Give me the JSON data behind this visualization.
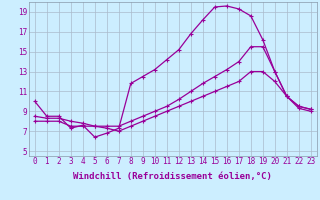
{
  "xlabel": "Windchill (Refroidissement éolien,°C)",
  "bg_color": "#cceeff",
  "grid_color": "#aabbcc",
  "line_color": "#990099",
  "xlim": [
    -0.5,
    23.5
  ],
  "ylim": [
    4.5,
    20.0
  ],
  "xticks": [
    0,
    1,
    2,
    3,
    4,
    5,
    6,
    7,
    8,
    9,
    10,
    11,
    12,
    13,
    14,
    15,
    16,
    17,
    18,
    19,
    20,
    21,
    22,
    23
  ],
  "yticks": [
    5,
    7,
    9,
    11,
    13,
    15,
    17,
    19
  ],
  "line1_x": [
    0,
    1,
    2,
    3,
    4,
    5,
    6,
    7,
    8,
    9,
    10,
    11,
    12,
    13,
    14,
    15,
    16,
    17,
    18,
    19,
    20,
    21,
    22,
    23
  ],
  "line1_y": [
    10.0,
    8.5,
    8.5,
    7.3,
    7.6,
    6.4,
    6.8,
    7.3,
    11.8,
    12.5,
    13.2,
    14.2,
    15.2,
    16.8,
    18.2,
    19.5,
    19.6,
    19.3,
    18.6,
    16.2,
    13.0,
    10.5,
    9.5,
    9.2
  ],
  "line2_x": [
    0,
    1,
    2,
    3,
    4,
    5,
    6,
    7,
    8,
    9,
    10,
    11,
    12,
    13,
    14,
    15,
    16,
    17,
    18,
    19,
    20,
    21,
    22,
    23
  ],
  "line2_y": [
    8.0,
    8.0,
    8.0,
    7.5,
    7.5,
    7.5,
    7.5,
    7.5,
    8.0,
    8.5,
    9.0,
    9.5,
    10.2,
    11.0,
    11.8,
    12.5,
    13.2,
    14.0,
    15.5,
    15.5,
    13.0,
    10.5,
    9.5,
    9.2
  ],
  "line3_x": [
    0,
    1,
    2,
    3,
    4,
    5,
    6,
    7,
    8,
    9,
    10,
    11,
    12,
    13,
    14,
    15,
    16,
    17,
    18,
    19,
    20,
    21,
    22,
    23
  ],
  "line3_y": [
    8.5,
    8.3,
    8.3,
    8.0,
    7.8,
    7.5,
    7.3,
    7.0,
    7.5,
    8.0,
    8.5,
    9.0,
    9.5,
    10.0,
    10.5,
    11.0,
    11.5,
    12.0,
    13.0,
    13.0,
    12.0,
    10.5,
    9.3,
    9.0
  ],
  "tick_fontsize": 5.5,
  "xlabel_fontsize": 6.5,
  "marker": "+",
  "markersize": 3.5,
  "linewidth": 0.9
}
